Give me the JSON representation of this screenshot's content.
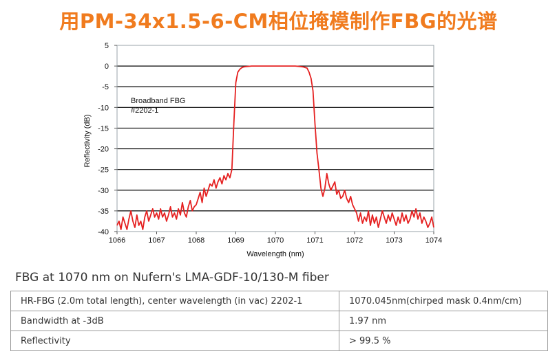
{
  "title": "用PM-34x1.5-6-CM相位掩模制作FBG的光谱",
  "caption": "FBG at 1070 nm on Nufern's LMA-GDF-10/130-M fiber",
  "accent_color": "#f07b1e",
  "line_color": "#e52020",
  "chart_data": {
    "type": "line",
    "title": "",
    "xlabel": "Wavelength (nm)",
    "ylabel": "Reflectivity (dB)",
    "xlim": [
      1066,
      1074
    ],
    "ylim": [
      -40,
      5
    ],
    "xticks": [
      1066,
      1067,
      1068,
      1069,
      1070,
      1071,
      1072,
      1073,
      1074
    ],
    "yticks": [
      5,
      0,
      -5,
      -10,
      -15,
      -20,
      -25,
      -30,
      -35,
      -40
    ],
    "grid": "horizontal",
    "annotation": [
      "Broadband FBG",
      "#2202-1"
    ],
    "series": [
      {
        "name": "Broadband FBG #2202-1",
        "x": [
          1066.0,
          1066.05,
          1066.1,
          1066.15,
          1066.2,
          1066.25,
          1066.3,
          1066.35,
          1066.4,
          1066.45,
          1066.5,
          1066.55,
          1066.6,
          1066.65,
          1066.7,
          1066.75,
          1066.8,
          1066.85,
          1066.9,
          1066.95,
          1067.0,
          1067.05,
          1067.1,
          1067.15,
          1067.2,
          1067.25,
          1067.3,
          1067.35,
          1067.4,
          1067.45,
          1067.5,
          1067.55,
          1067.6,
          1067.65,
          1067.7,
          1067.75,
          1067.8,
          1067.85,
          1067.9,
          1067.95,
          1068.0,
          1068.05,
          1068.1,
          1068.15,
          1068.2,
          1068.25,
          1068.3,
          1068.35,
          1068.4,
          1068.45,
          1068.5,
          1068.55,
          1068.6,
          1068.65,
          1068.7,
          1068.75,
          1068.8,
          1068.85,
          1068.9,
          1068.95,
          1069.0,
          1069.05,
          1069.1,
          1069.15,
          1069.2,
          1069.3,
          1069.4,
          1069.5,
          1069.7,
          1070.0,
          1070.3,
          1070.5,
          1070.6,
          1070.7,
          1070.8,
          1070.85,
          1070.9,
          1070.95,
          1071.0,
          1071.05,
          1071.1,
          1071.15,
          1071.2,
          1071.25,
          1071.3,
          1071.35,
          1071.4,
          1071.45,
          1071.5,
          1071.55,
          1071.6,
          1071.65,
          1071.7,
          1071.75,
          1071.8,
          1071.85,
          1071.9,
          1071.95,
          1072.0,
          1072.05,
          1072.1,
          1072.15,
          1072.2,
          1072.25,
          1072.3,
          1072.35,
          1072.4,
          1072.45,
          1072.5,
          1072.55,
          1072.6,
          1072.65,
          1072.7,
          1072.75,
          1072.8,
          1072.85,
          1072.9,
          1072.95,
          1073.0,
          1073.05,
          1073.1,
          1073.15,
          1073.2,
          1073.25,
          1073.3,
          1073.35,
          1073.4,
          1073.45,
          1073.5,
          1073.55,
          1073.6,
          1073.65,
          1073.7,
          1073.75,
          1073.8,
          1073.85,
          1073.9,
          1073.95,
          1074.0
        ],
        "y": [
          -38.5,
          -37.5,
          -39.5,
          -36.5,
          -38.0,
          -39.5,
          -37.0,
          -35.0,
          -37.5,
          -39.0,
          -36.0,
          -38.5,
          -37.5,
          -39.5,
          -36.5,
          -35.0,
          -37.5,
          -36.0,
          -34.5,
          -36.5,
          -35.5,
          -37.0,
          -34.5,
          -36.5,
          -35.5,
          -37.5,
          -36.0,
          -34.0,
          -36.5,
          -35.5,
          -37.0,
          -34.5,
          -36.0,
          -33.0,
          -35.5,
          -36.5,
          -34.0,
          -32.5,
          -35.0,
          -34.0,
          -33.5,
          -32.0,
          -30.5,
          -33.0,
          -29.5,
          -31.5,
          -30.0,
          -28.5,
          -29.0,
          -27.5,
          -29.5,
          -28.0,
          -27.0,
          -28.5,
          -26.5,
          -27.5,
          -26.0,
          -27.0,
          -25.0,
          -14.0,
          -4.0,
          -1.5,
          -0.8,
          -0.4,
          -0.2,
          -0.1,
          0.0,
          0.0,
          0.0,
          0.0,
          0.0,
          0.0,
          -0.1,
          -0.2,
          -0.5,
          -1.5,
          -3.0,
          -6.0,
          -14.0,
          -21.0,
          -25.0,
          -29.5,
          -31.5,
          -29.5,
          -26.0,
          -28.5,
          -30.0,
          -29.0,
          -28.0,
          -31.0,
          -30.0,
          -32.0,
          -31.5,
          -30.0,
          -32.0,
          -33.0,
          -31.5,
          -33.5,
          -34.5,
          -35.5,
          -37.5,
          -35.5,
          -38.0,
          -36.5,
          -37.5,
          -35.0,
          -38.5,
          -36.0,
          -38.0,
          -36.5,
          -39.0,
          -37.0,
          -35.0,
          -36.5,
          -38.0,
          -36.0,
          -37.5,
          -35.5,
          -37.0,
          -38.5,
          -36.5,
          -38.0,
          -35.5,
          -37.5,
          -36.0,
          -38.0,
          -37.0,
          -35.0,
          -36.5,
          -34.5,
          -37.0,
          -35.5,
          -38.0,
          -36.5,
          -37.5,
          -39.0,
          -38.0,
          -36.5,
          -39.0
        ]
      }
    ]
  },
  "table": {
    "rows": [
      [
        "HR-FBG (2.0m total length), center wavelength (in vac) 2202-1",
        "1070.045nm(chirped mask 0.4nm/cm)"
      ],
      [
        "Bandwidth at -3dB",
        "1.97 nm"
      ],
      [
        "Reflectivity",
        "> 99.5 %"
      ]
    ]
  }
}
